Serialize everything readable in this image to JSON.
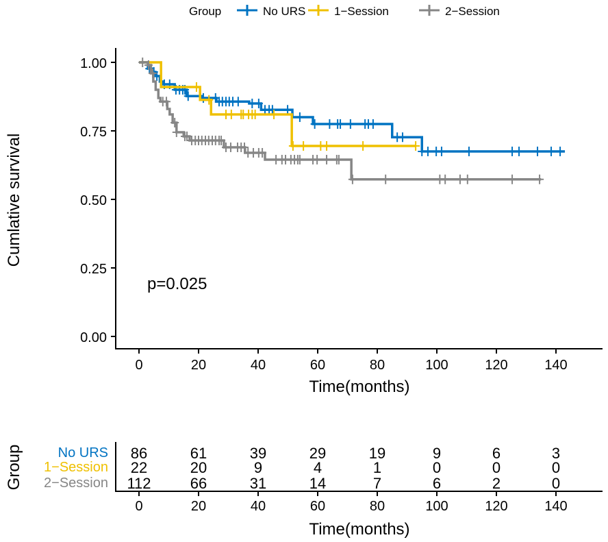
{
  "chart_data": {
    "type": "line",
    "subtype": "kaplan-meier",
    "xlabel": "Time(months)",
    "ylabel": "Cumlative survival",
    "xlim": [
      0,
      150
    ],
    "ylim": [
      0,
      1
    ],
    "x_ticks": [
      0,
      20,
      40,
      60,
      80,
      100,
      120,
      140
    ],
    "y_ticks": [
      "0.00",
      "0.25",
      "0.50",
      "0.75",
      "1.00"
    ],
    "grid": false,
    "legend_title": "Group",
    "legend_position": "top",
    "annotation": "p=0.025",
    "series": [
      {
        "name": "No URS",
        "color": "#0073C2",
        "steps": [
          [
            0,
            1.0
          ],
          [
            3,
            0.977
          ],
          [
            4.5,
            0.965
          ],
          [
            5.5,
            0.95
          ],
          [
            7,
            0.93
          ],
          [
            8,
            0.92
          ],
          [
            12,
            0.9
          ],
          [
            16,
            0.877
          ],
          [
            21,
            0.87
          ],
          [
            26,
            0.857
          ],
          [
            37,
            0.85
          ],
          [
            41,
            0.827
          ],
          [
            51.5,
            0.8
          ],
          [
            58.4,
            0.775
          ],
          [
            85,
            0.727
          ],
          [
            95,
            0.675
          ]
        ],
        "end": 143,
        "censored": [
          3.5,
          5,
          6,
          8.5,
          10.3,
          12.4,
          13.6,
          14.7,
          15.4,
          16.5,
          21.6,
          25.7,
          26.9,
          28,
          29.2,
          30.3,
          31.5,
          33.3,
          38,
          40.2,
          42.3,
          43.7,
          44.8,
          49.9,
          54,
          59,
          64,
          66.7,
          67.6,
          71,
          75.9,
          77,
          78.6,
          86.7,
          88.5,
          95,
          97,
          99.8,
          101.6,
          110.8,
          125.3,
          127.6,
          133.8,
          138.4,
          141.4
        ]
      },
      {
        "name": "1−Session",
        "color": "#EFC000",
        "steps": [
          [
            0,
            1.0
          ],
          [
            7.4,
            0.91
          ],
          [
            20.5,
            0.863
          ],
          [
            24.2,
            0.81
          ],
          [
            51.3,
            0.695
          ]
        ],
        "end": 93,
        "censored": [
          19.3,
          23.5,
          29.2,
          31,
          34.3,
          35,
          36.8,
          38,
          39,
          45.3,
          51.7,
          55.2,
          61,
          63,
          75.2,
          92.9
        ]
      },
      {
        "name": "2−Session",
        "color": "#868686",
        "steps": [
          [
            0,
            1.0
          ],
          [
            3,
            0.99
          ],
          [
            4,
            0.96
          ],
          [
            4.8,
            0.93
          ],
          [
            5.6,
            0.9
          ],
          [
            6.5,
            0.87
          ],
          [
            7.2,
            0.857
          ],
          [
            9.5,
            0.83
          ],
          [
            10.3,
            0.81
          ],
          [
            11.3,
            0.78
          ],
          [
            12.6,
            0.745
          ],
          [
            15,
            0.73
          ],
          [
            17,
            0.715
          ],
          [
            28.5,
            0.69
          ],
          [
            35.6,
            0.67
          ],
          [
            42.3,
            0.645
          ],
          [
            71.3,
            0.573
          ]
        ],
        "end": 135,
        "censored": [
          1.2,
          3.2,
          4.6,
          8,
          9.2,
          12,
          12.6,
          15.4,
          16.1,
          17.7,
          18.9,
          20,
          21.1,
          22.3,
          23.4,
          24.6,
          25.7,
          26.9,
          27.6,
          29.2,
          30.8,
          33.1,
          34.3,
          35.4,
          36.6,
          38.4,
          40.2,
          41.4,
          46,
          48,
          49.2,
          51,
          52.2,
          53.3,
          54,
          58.4,
          59.8,
          63,
          66.4,
          67.1,
          71.7,
          82.8,
          101,
          102.8,
          107.8,
          110.3,
          125.3,
          134.5
        ]
      }
    ],
    "risk_table": {
      "ylabel": "Group",
      "xlabel": "Time(months)",
      "times": [
        0,
        20,
        40,
        60,
        80,
        100,
        120,
        140
      ],
      "rows": [
        {
          "name": "No URS",
          "color": "#0073C2",
          "values": [
            "86",
            "61",
            "39",
            "29",
            "19",
            "9",
            "6",
            "3"
          ]
        },
        {
          "name": "1−Session",
          "color": "#EFC000",
          "values": [
            "22",
            "20",
            "9",
            "4",
            "1",
            "0",
            "0",
            "0"
          ]
        },
        {
          "name": "2−Session",
          "color": "#868686",
          "values": [
            "112",
            "66",
            "31",
            "14",
            "7",
            "6",
            "2",
            "0"
          ]
        }
      ]
    }
  }
}
